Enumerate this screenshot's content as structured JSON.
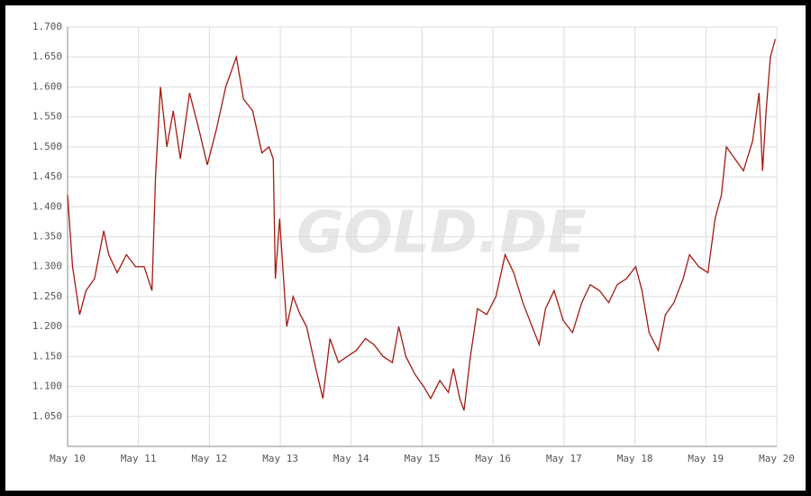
{
  "chart_data": {
    "type": "line",
    "watermark": "GOLD.DE",
    "x": [
      2010.33,
      2010.4,
      2010.5,
      2010.59,
      2010.71,
      2010.84,
      2010.91,
      2011.03,
      2011.16,
      2011.29,
      2011.41,
      2011.52,
      2011.57,
      2011.64,
      2011.73,
      2011.82,
      2011.92,
      2012.05,
      2012.18,
      2012.3,
      2012.43,
      2012.56,
      2012.71,
      2012.81,
      2012.94,
      2013.07,
      2013.17,
      2013.23,
      2013.26,
      2013.32,
      2013.42,
      2013.51,
      2013.61,
      2013.7,
      2013.83,
      2013.93,
      2014.03,
      2014.15,
      2014.27,
      2014.4,
      2014.53,
      2014.65,
      2014.78,
      2014.91,
      2015.0,
      2015.1,
      2015.23,
      2015.35,
      2015.45,
      2015.58,
      2015.7,
      2015.77,
      2015.86,
      2015.92,
      2016.01,
      2016.11,
      2016.24,
      2016.37,
      2016.5,
      2016.62,
      2016.75,
      2016.88,
      2016.98,
      2017.07,
      2017.19,
      2017.32,
      2017.45,
      2017.58,
      2017.7,
      2017.83,
      2017.96,
      2018.08,
      2018.21,
      2018.34,
      2018.43,
      2018.53,
      2018.66,
      2018.76,
      2018.88,
      2019.01,
      2019.1,
      2019.23,
      2019.36,
      2019.46,
      2019.55,
      2019.62,
      2019.74,
      2019.86,
      2019.99,
      2020.08,
      2020.13,
      2020.18,
      2020.24,
      2020.31
    ],
    "series": [
      {
        "color": "#a31a0f",
        "values": [
          1420,
          1300,
          1220,
          1260,
          1280,
          1360,
          1320,
          1290,
          1320,
          1300,
          1300,
          1260,
          1450,
          1600,
          1500,
          1560,
          1480,
          1590,
          1530,
          1470,
          1530,
          1600,
          1650,
          1580,
          1560,
          1490,
          1500,
          1480,
          1280,
          1380,
          1200,
          1250,
          1220,
          1200,
          1130,
          1080,
          1180,
          1140,
          1150,
          1160,
          1180,
          1170,
          1150,
          1140,
          1200,
          1150,
          1120,
          1100,
          1080,
          1110,
          1090,
          1130,
          1080,
          1060,
          1150,
          1230,
          1220,
          1250,
          1320,
          1290,
          1240,
          1200,
          1170,
          1230,
          1260,
          1210,
          1190,
          1240,
          1270,
          1260,
          1240,
          1270,
          1280,
          1300,
          1260,
          1190,
          1160,
          1220,
          1240,
          1280,
          1320,
          1300,
          1290,
          1380,
          1420,
          1500,
          1480,
          1460,
          1510,
          1590,
          1460,
          1560,
          1650,
          1680
        ]
      }
    ],
    "xlim": [
      2010.33,
      2020.33
    ],
    "xticks": [
      {
        "value": 2010.33,
        "label": "May 10"
      },
      {
        "value": 2011.33,
        "label": "May 11"
      },
      {
        "value": 2012.33,
        "label": "May 12"
      },
      {
        "value": 2013.33,
        "label": "May 13"
      },
      {
        "value": 2014.33,
        "label": "May 14"
      },
      {
        "value": 2015.33,
        "label": "May 15"
      },
      {
        "value": 2016.33,
        "label": "May 16"
      },
      {
        "value": 2017.33,
        "label": "May 17"
      },
      {
        "value": 2018.33,
        "label": "May 18"
      },
      {
        "value": 2019.33,
        "label": "May 19"
      },
      {
        "value": 2020.33,
        "label": "May 20"
      }
    ],
    "ylim": [
      1000,
      1700
    ],
    "yticks": [
      {
        "value": 1050,
        "label": "1.050"
      },
      {
        "value": 1100,
        "label": "1.100"
      },
      {
        "value": 1150,
        "label": "1.150"
      },
      {
        "value": 1200,
        "label": "1.200"
      },
      {
        "value": 1250,
        "label": "1.250"
      },
      {
        "value": 1300,
        "label": "1.300"
      },
      {
        "value": 1350,
        "label": "1.350"
      },
      {
        "value": 1400,
        "label": "1.400"
      },
      {
        "value": 1450,
        "label": "1.450"
      },
      {
        "value": 1500,
        "label": "1.500"
      },
      {
        "value": 1550,
        "label": "1.550"
      },
      {
        "value": 1600,
        "label": "1.600"
      },
      {
        "value": 1650,
        "label": "1.650"
      },
      {
        "value": 1700,
        "label": "1.700"
      }
    ],
    "grid": true
  }
}
